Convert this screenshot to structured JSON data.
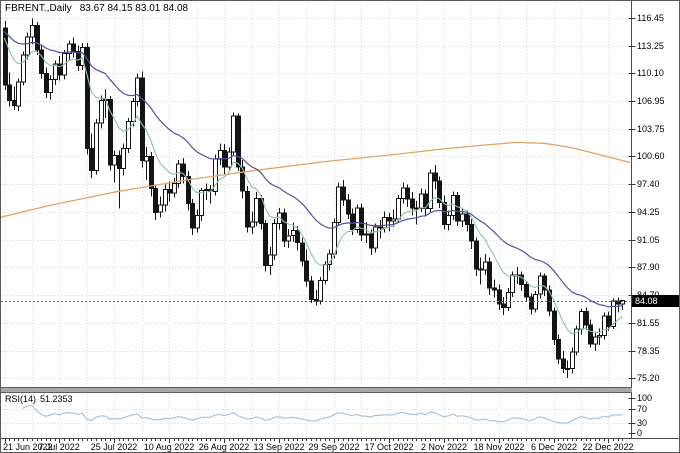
{
  "chart_data": {
    "type": "candlestick",
    "title": "FBRENT.,Daily",
    "ohlc_text": "83.67 84.15 83.01 84.08",
    "ohlc_header": {
      "open": "83.67",
      "high": "84.15",
      "low": "83.01",
      "close": "84.08"
    },
    "current_price": "84.08",
    "price_axis_labels": [
      "116.45",
      "113.25",
      "110.10",
      "106.95",
      "103.75",
      "100.60",
      "97.40",
      "94.25",
      "91.05",
      "87.90",
      "84.70",
      "81.55",
      "78.35",
      "75.20"
    ],
    "ylim": [
      74.0,
      117.4
    ],
    "grid": true,
    "legend_position": "none",
    "date_labels": [
      "21 Jun 2022",
      "7 Jul 2022",
      "25 Jul 2022",
      "10 Aug 2022",
      "26 Aug 2022",
      "13 Sep 2022",
      "29 Sep 2022",
      "17 Oct 2022",
      "2 Nov 2022",
      "18 Nov 2022",
      "6 Dec 2022",
      "22 Dec 2022"
    ],
    "candles": [
      [
        115.3,
        116.1,
        108.2,
        108.8
      ],
      [
        108.8,
        110.2,
        106.3,
        107.0
      ],
      [
        107.0,
        108.6,
        105.9,
        106.4
      ],
      [
        106.4,
        109.5,
        105.8,
        109.1
      ],
      [
        109.1,
        112.6,
        108.7,
        112.2
      ],
      [
        112.2,
        114.8,
        111.7,
        114.3
      ],
      [
        114.3,
        116.4,
        113.5,
        115.6
      ],
      [
        115.6,
        116.0,
        112.2,
        112.8
      ],
      [
        112.8,
        113.4,
        109.5,
        110.1
      ],
      [
        110.1,
        110.8,
        107.3,
        107.9
      ],
      [
        107.9,
        109.9,
        107.1,
        109.4
      ],
      [
        109.4,
        111.6,
        108.8,
        111.2
      ],
      [
        111.2,
        112.1,
        109.3,
        109.9
      ],
      [
        109.9,
        112.8,
        109.4,
        112.4
      ],
      [
        112.4,
        113.9,
        111.6,
        113.5
      ],
      [
        113.5,
        114.2,
        111.9,
        112.6
      ],
      [
        112.6,
        113.3,
        110.4,
        111.0
      ],
      [
        111.0,
        113.6,
        110.5,
        113.1
      ],
      [
        113.1,
        113.6,
        100.8,
        101.5
      ],
      [
        101.5,
        103.2,
        98.1,
        99.0
      ],
      [
        99.0,
        104.9,
        98.5,
        104.4
      ],
      [
        104.4,
        107.6,
        103.8,
        107.0
      ],
      [
        107.0,
        108.3,
        105.0,
        107.1
      ],
      [
        107.1,
        107.5,
        99.0,
        99.6
      ],
      [
        99.6,
        101.2,
        97.6,
        100.7
      ],
      [
        100.7,
        101.3,
        94.6,
        99.2
      ],
      [
        99.2,
        102.1,
        98.4,
        101.5
      ],
      [
        101.5,
        105.0,
        101.0,
        104.6
      ],
      [
        104.6,
        107.3,
        104.0,
        106.9
      ],
      [
        106.9,
        110.1,
        106.3,
        109.6
      ],
      [
        109.6,
        110.3,
        99.3,
        100.1
      ],
      [
        100.1,
        101.7,
        97.9,
        100.6
      ],
      [
        100.6,
        101.1,
        96.0,
        96.9
      ],
      [
        96.9,
        97.4,
        93.3,
        94.2
      ],
      [
        94.2,
        96.0,
        93.6,
        95.0
      ],
      [
        95.0,
        97.4,
        94.3,
        96.8
      ],
      [
        96.8,
        97.7,
        95.4,
        96.4
      ],
      [
        96.4,
        98.1,
        95.9,
        97.5
      ],
      [
        97.5,
        100.2,
        97.0,
        99.7
      ],
      [
        99.7,
        100.4,
        97.5,
        98.3
      ],
      [
        98.3,
        98.9,
        94.4,
        95.2
      ],
      [
        95.2,
        95.7,
        91.6,
        92.4
      ],
      [
        92.4,
        94.5,
        91.9,
        93.8
      ],
      [
        93.8,
        97.0,
        93.2,
        96.7
      ],
      [
        96.7,
        97.5,
        95.6,
        96.8
      ],
      [
        96.8,
        97.3,
        95.2,
        96.6
      ],
      [
        96.6,
        100.8,
        96.1,
        100.3
      ],
      [
        100.3,
        102.1,
        99.6,
        101.3
      ],
      [
        101.3,
        102.0,
        98.6,
        99.4
      ],
      [
        99.4,
        101.6,
        98.9,
        101.1
      ],
      [
        101.1,
        105.6,
        100.7,
        105.2
      ],
      [
        105.2,
        105.5,
        98.9,
        99.4
      ],
      [
        99.4,
        100.2,
        95.8,
        96.6
      ],
      [
        96.6,
        97.2,
        91.9,
        92.5
      ],
      [
        92.5,
        94.3,
        91.7,
        93.1
      ],
      [
        93.1,
        96.5,
        92.6,
        95.8
      ],
      [
        95.8,
        96.2,
        92.2,
        92.9
      ],
      [
        92.9,
        93.3,
        87.4,
        88.1
      ],
      [
        88.1,
        90.2,
        87.0,
        89.3
      ],
      [
        89.3,
        93.4,
        88.7,
        92.9
      ],
      [
        92.9,
        94.7,
        92.2,
        94.1
      ],
      [
        94.1,
        94.6,
        90.2,
        90.9
      ],
      [
        90.9,
        92.3,
        90.1,
        91.5
      ],
      [
        91.5,
        93.0,
        90.8,
        92.1
      ],
      [
        92.1,
        92.6,
        89.8,
        90.7
      ],
      [
        90.7,
        91.3,
        88.0,
        88.6
      ],
      [
        88.6,
        89.9,
        85.7,
        86.3
      ],
      [
        86.3,
        86.9,
        83.8,
        84.2
      ],
      [
        84.2,
        85.3,
        83.5,
        84.0
      ],
      [
        84.0,
        86.8,
        83.6,
        86.4
      ],
      [
        86.4,
        88.6,
        85.9,
        88.2
      ],
      [
        88.2,
        89.9,
        87.5,
        89.4
      ],
      [
        89.4,
        93.5,
        88.9,
        93.0
      ],
      [
        93.0,
        97.6,
        92.6,
        97.1
      ],
      [
        97.1,
        97.9,
        94.9,
        95.6
      ],
      [
        95.6,
        96.3,
        93.4,
        94.0
      ],
      [
        94.0,
        94.6,
        91.6,
        92.2
      ],
      [
        92.2,
        95.1,
        91.8,
        94.7
      ],
      [
        94.7,
        95.2,
        90.9,
        91.6
      ],
      [
        91.6,
        93.1,
        90.7,
        91.7
      ],
      [
        91.7,
        92.2,
        89.3,
        90.1
      ],
      [
        90.1,
        92.9,
        89.6,
        92.5
      ],
      [
        92.5,
        93.3,
        91.2,
        92.4
      ],
      [
        92.4,
        94.3,
        91.9,
        93.6
      ],
      [
        93.6,
        94.1,
        92.0,
        93.2
      ],
      [
        93.2,
        94.5,
        92.5,
        93.4
      ],
      [
        93.4,
        96.2,
        93.0,
        95.8
      ],
      [
        95.8,
        97.6,
        95.2,
        97.0
      ],
      [
        97.0,
        97.4,
        94.8,
        95.7
      ],
      [
        95.7,
        96.5,
        93.8,
        94.7
      ],
      [
        94.7,
        95.5,
        92.8,
        94.6
      ],
      [
        94.6,
        96.9,
        94.2,
        96.3
      ],
      [
        96.3,
        96.8,
        93.7,
        94.6
      ],
      [
        94.6,
        99.1,
        94.2,
        98.7
      ],
      [
        98.7,
        99.6,
        96.8,
        97.8
      ],
      [
        97.8,
        98.3,
        94.7,
        95.3
      ],
      [
        95.3,
        96.1,
        92.2,
        92.8
      ],
      [
        92.8,
        94.4,
        92.1,
        93.8
      ],
      [
        93.8,
        96.6,
        93.3,
        96.1
      ],
      [
        96.1,
        96.5,
        92.6,
        93.2
      ],
      [
        93.2,
        94.6,
        92.5,
        94.0
      ],
      [
        94.0,
        94.4,
        92.0,
        92.8
      ],
      [
        92.8,
        93.4,
        90.0,
        90.9
      ],
      [
        90.9,
        91.3,
        86.9,
        87.7
      ],
      [
        87.7,
        89.0,
        85.9,
        87.6
      ],
      [
        87.6,
        89.4,
        87.0,
        88.5
      ],
      [
        88.5,
        89.0,
        84.7,
        85.5
      ],
      [
        85.5,
        86.5,
        84.4,
        85.3
      ],
      [
        85.3,
        85.9,
        83.0,
        83.7
      ],
      [
        83.7,
        84.5,
        82.4,
        83.3
      ],
      [
        83.3,
        85.5,
        82.9,
        85.0
      ],
      [
        85.0,
        87.4,
        84.5,
        87.0
      ],
      [
        87.0,
        87.9,
        86.0,
        87.0
      ],
      [
        87.0,
        87.4,
        85.2,
        85.9
      ],
      [
        85.9,
        86.3,
        83.9,
        84.5
      ],
      [
        84.5,
        84.9,
        82.5,
        83.1
      ],
      [
        83.1,
        85.2,
        82.7,
        84.8
      ],
      [
        84.8,
        87.3,
        84.3,
        86.9
      ],
      [
        86.9,
        87.2,
        84.6,
        85.3
      ],
      [
        85.3,
        85.8,
        82.3,
        82.9
      ],
      [
        82.9,
        83.3,
        79.0,
        79.6
      ],
      [
        79.6,
        80.2,
        76.8,
        77.4
      ],
      [
        77.4,
        78.3,
        75.8,
        76.3
      ],
      [
        76.3,
        77.2,
        75.2,
        76.3
      ],
      [
        76.3,
        78.7,
        75.7,
        78.2
      ],
      [
        78.2,
        81.2,
        77.8,
        80.8
      ],
      [
        80.8,
        83.1,
        80.2,
        82.8
      ],
      [
        82.8,
        83.3,
        80.7,
        81.3
      ],
      [
        81.3,
        81.9,
        78.7,
        79.1
      ],
      [
        79.1,
        80.5,
        78.3,
        79.9
      ],
      [
        79.9,
        80.9,
        79.0,
        80.1
      ],
      [
        80.1,
        82.7,
        79.6,
        82.3
      ],
      [
        82.3,
        82.8,
        80.6,
        81.1
      ],
      [
        81.1,
        84.3,
        80.8,
        84.0
      ],
      [
        84.0,
        84.4,
        82.7,
        83.67
      ],
      [
        83.67,
        84.15,
        83.01,
        84.08
      ]
    ],
    "indicators": {
      "ma_fast": {
        "type": "ema",
        "period": 10,
        "color": "#8fc2a8"
      },
      "ma_slow": {
        "type": "ema",
        "period": 30,
        "color": "#5352a0"
      },
      "ma_long": {
        "color": "#e0a566",
        "points": [
          [
            -1,
            93.6
          ],
          [
            10,
            95.0
          ],
          [
            25,
            96.6
          ],
          [
            40,
            97.9
          ],
          [
            55,
            99.0
          ],
          [
            70,
            100.0
          ],
          [
            85,
            100.8
          ],
          [
            95,
            101.4
          ],
          [
            105,
            101.9
          ],
          [
            112,
            102.2
          ],
          [
            118,
            102.1
          ],
          [
            124,
            101.6
          ],
          [
            130,
            100.8
          ],
          [
            139,
            99.6
          ]
        ]
      }
    },
    "rsi_panel": {
      "label": "RSI(14)",
      "value": "51.2353",
      "period": 14,
      "axis_labels": [
        "100",
        "70",
        "30",
        "0"
      ],
      "levels": [
        70,
        30
      ],
      "color": "#a8c4dc"
    },
    "colors": {
      "background": "#ffffff",
      "grid": "#d9d9de",
      "bull": "#ffffff",
      "bear": "#141414",
      "outline": "#141414",
      "axis_line": "#4a4a4a",
      "tick": "#333333",
      "price_line": "#666666",
      "price_tag_bg": "#000000",
      "price_tag_text": "#ffffff"
    }
  }
}
